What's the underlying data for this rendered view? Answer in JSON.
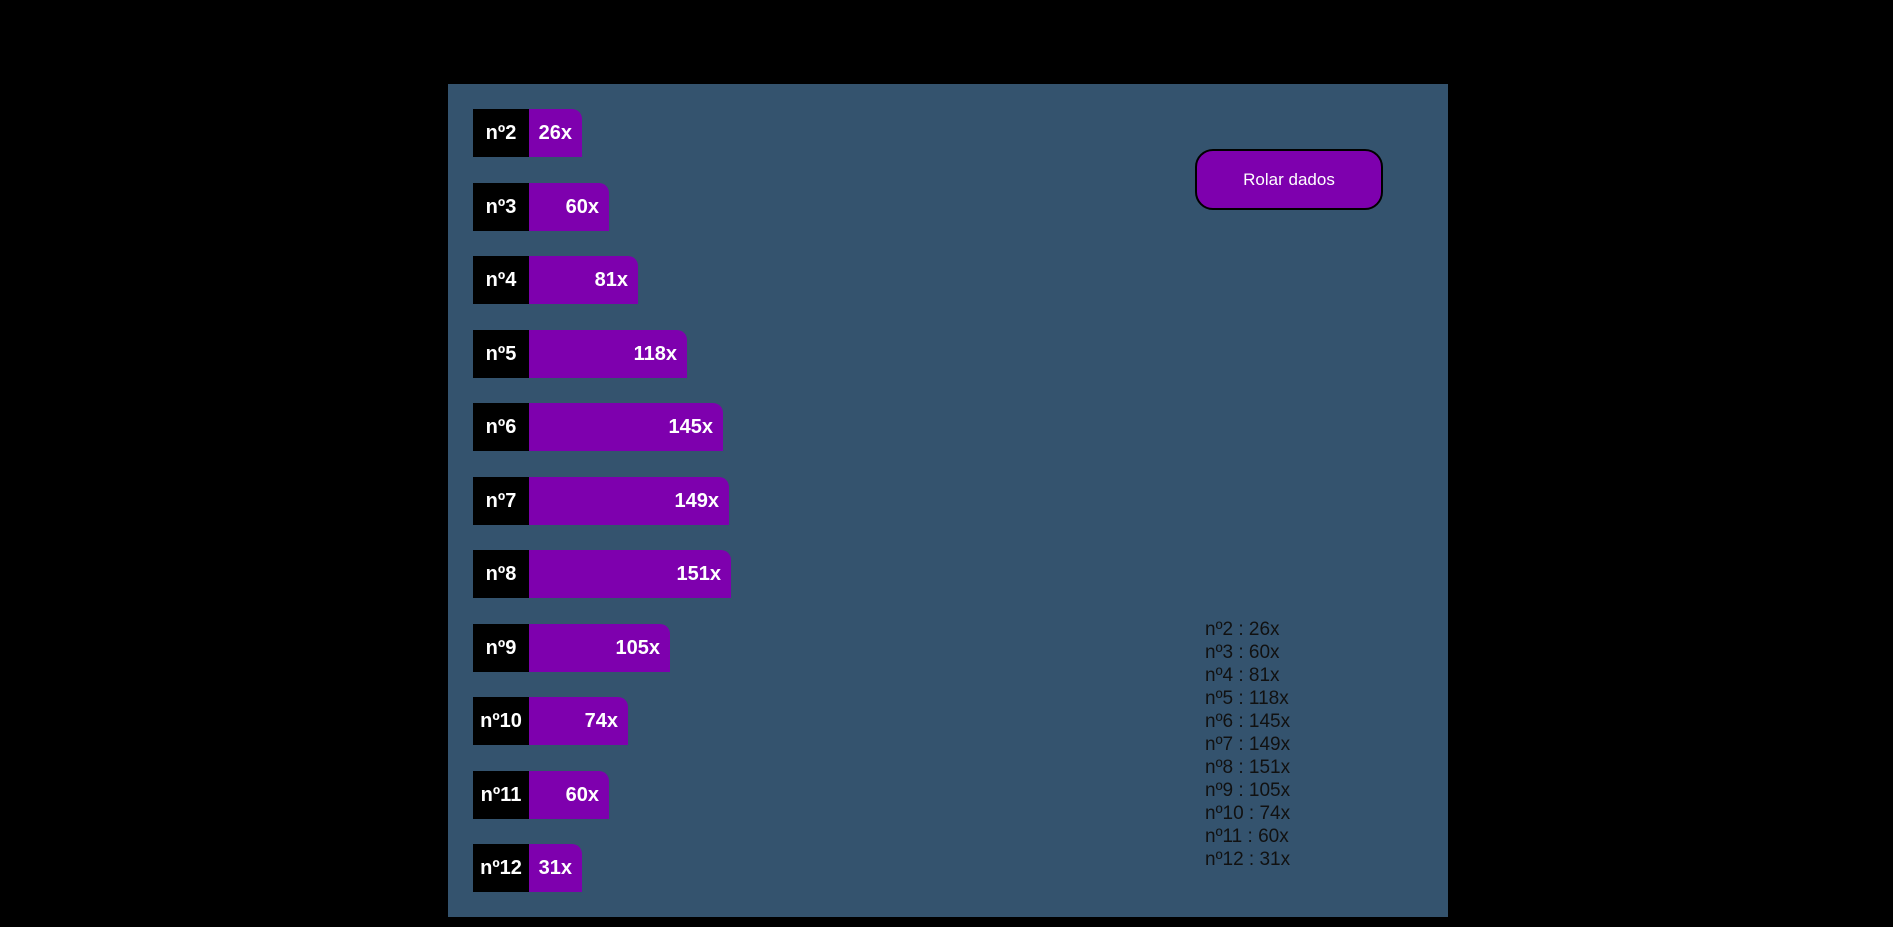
{
  "colors": {
    "page_background": "#000000",
    "panel_background": "#34536e",
    "bar_fill": "#7e00ae",
    "label_background": "#000000",
    "button_background": "#7e00ae"
  },
  "button": {
    "label": "Rolar dados"
  },
  "chart_data": {
    "type": "bar",
    "orientation": "horizontal",
    "categories": [
      "nº2",
      "nº3",
      "nº4",
      "nº5",
      "nº6",
      "nº7",
      "nº8",
      "nº9",
      "nº10",
      "nº11",
      "nº12"
    ],
    "values": [
      26,
      60,
      81,
      118,
      145,
      149,
      151,
      105,
      74,
      60,
      31
    ],
    "value_labels": [
      "26x",
      "60x",
      "81x",
      "118x",
      "145x",
      "149x",
      "151x",
      "105x",
      "74x",
      "60x",
      "31x"
    ]
  },
  "results": [
    "nº2 : 26x",
    "nº3 : 60x",
    "nº4 : 81x",
    "nº5 : 118x",
    "nº6 : 145x",
    "nº7 : 149x",
    "nº8 : 151x",
    "nº9 : 105x",
    "nº10 : 74x",
    "nº11 : 60x",
    "nº12 : 31x"
  ]
}
